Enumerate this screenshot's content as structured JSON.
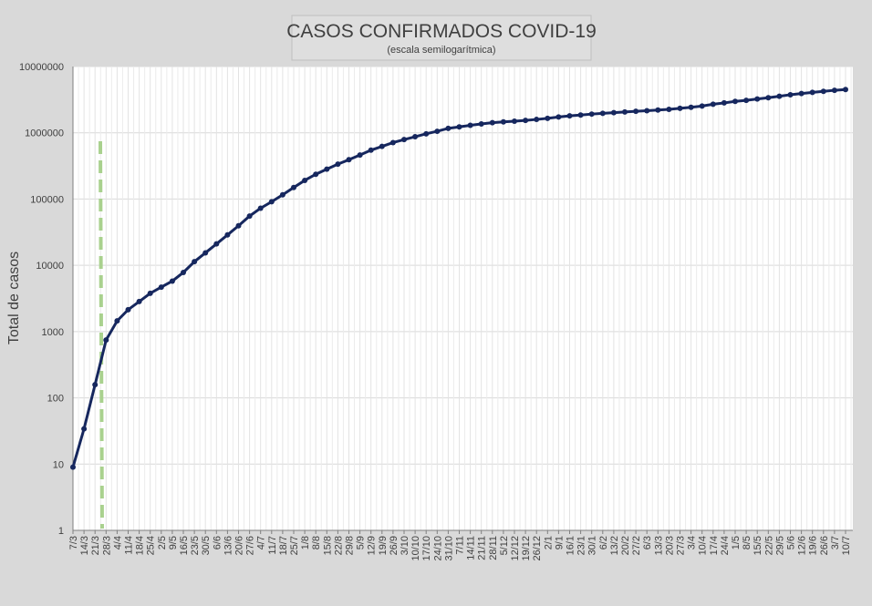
{
  "chart_data": {
    "type": "line",
    "title": "CASOS CONFIRMADOS COVID-19",
    "subtitle": "(escala semilogarítmica)",
    "y_label": "Total de casos",
    "log_scale": true,
    "grid": true,
    "color": "#16275e",
    "categories": [
      "7/3",
      "14/3",
      "21/3",
      "28/3",
      "4/4",
      "11/4",
      "18/4",
      "25/4",
      "2/5",
      "9/5",
      "16/5",
      "23/5",
      "30/5",
      "6/6",
      "13/6",
      "20/6",
      "27/6",
      "4/7",
      "11/7",
      "18/7",
      "25/7",
      "1/8",
      "8/8",
      "15/8",
      "22/8",
      "29/8",
      "5/9",
      "12/9",
      "19/9",
      "26/9",
      "3/10",
      "10/10",
      "17/10",
      "24/10",
      "31/10",
      "7/11",
      "14/11",
      "21/11",
      "28/11",
      "5/12",
      "12/12",
      "19/12",
      "26/12",
      "2/1",
      "9/1",
      "16/1",
      "23/1",
      "30/1",
      "6/2",
      "13/2",
      "20/2",
      "27/2",
      "6/3",
      "13/3",
      "20/3",
      "27/3",
      "3/4",
      "10/4",
      "17/4",
      "24/4",
      "1/5",
      "8/5",
      "15/5",
      "22/5",
      "29/5",
      "5/6",
      "12/6",
      "19/6",
      "26/6",
      "3/7",
      "10/7"
    ],
    "values": [
      9,
      34,
      158,
      745,
      1450,
      2140,
      2840,
      3780,
      4680,
      5780,
      7810,
      11350,
      15420,
      21040,
      28750,
      39550,
      55340,
      72780,
      91080,
      115900,
      149450,
      191300,
      236500,
      282400,
      336700,
      392300,
      461900,
      546500,
      622900,
      711300,
      790100,
      871500,
      965600,
      1053600,
      1166900,
      1228800,
      1296400,
      1359000,
      1418800,
      1463100,
      1494600,
      1537200,
      1590500,
      1648900,
      1730900,
      1799200,
      1853800,
      1915400,
      1962400,
      2013400,
      2060600,
      2107400,
      2149600,
      2201900,
      2261500,
      2338600,
      2428000,
      2532000,
      2694000,
      2824000,
      2977000,
      3088000,
      3232000,
      3380000,
      3563000,
      3753000,
      3917000,
      4069000,
      4212000,
      4380000,
      4503000
    ],
    "ylim": [
      1,
      10000000
    ],
    "yticks": [
      1,
      10,
      100,
      1000,
      10000,
      100000,
      1000000,
      10000000
    ]
  }
}
